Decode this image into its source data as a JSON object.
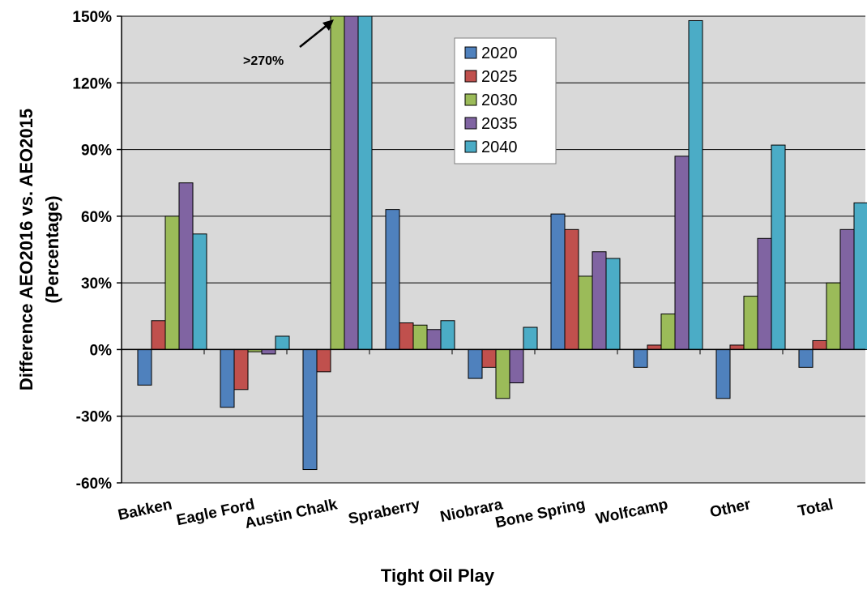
{
  "chart_data": {
    "type": "bar",
    "xlabel": "Tight Oil Play",
    "ylabel_line1": "Difference AEO2016 vs. AEO2015",
    "ylabel_line2": "(Percentage)",
    "ylim": [
      -60,
      150
    ],
    "yticks": [
      -60,
      -30,
      0,
      30,
      60,
      90,
      120,
      150
    ],
    "ytick_labels": [
      "-60%",
      "-30%",
      "0%",
      "30%",
      "60%",
      "90%",
      "120%",
      "150%"
    ],
    "grid": true,
    "legend_position": "top-center",
    "categories": [
      "Bakken",
      "Eagle Ford",
      "Austin Chalk",
      "Spraberry",
      "Niobrara",
      "Bone Spring",
      "Wolfcamp",
      "Other",
      "Total"
    ],
    "series": [
      {
        "name": "2020",
        "color": "#4f81bd",
        "values": [
          -16,
          -26,
          -54,
          63,
          -13,
          61,
          -8,
          -22,
          -8
        ]
      },
      {
        "name": "2025",
        "color": "#c0504d",
        "values": [
          13,
          -18,
          -10,
          12,
          -8,
          54,
          2,
          2,
          4
        ]
      },
      {
        "name": "2030",
        "color": "#9bbb59",
        "values": [
          60,
          -1,
          150,
          11,
          -22,
          33,
          16,
          24,
          30
        ]
      },
      {
        "name": "2035",
        "color": "#8064a2",
        "values": [
          75,
          -2,
          150,
          9,
          -15,
          44,
          87,
          50,
          54
        ]
      },
      {
        "name": "2040",
        "color": "#4bacc6",
        "values": [
          52,
          6,
          150,
          13,
          10,
          41,
          148,
          92,
          66
        ]
      }
    ],
    "annotation": {
      "text": ">270%",
      "category": "Austin Chalk"
    }
  }
}
